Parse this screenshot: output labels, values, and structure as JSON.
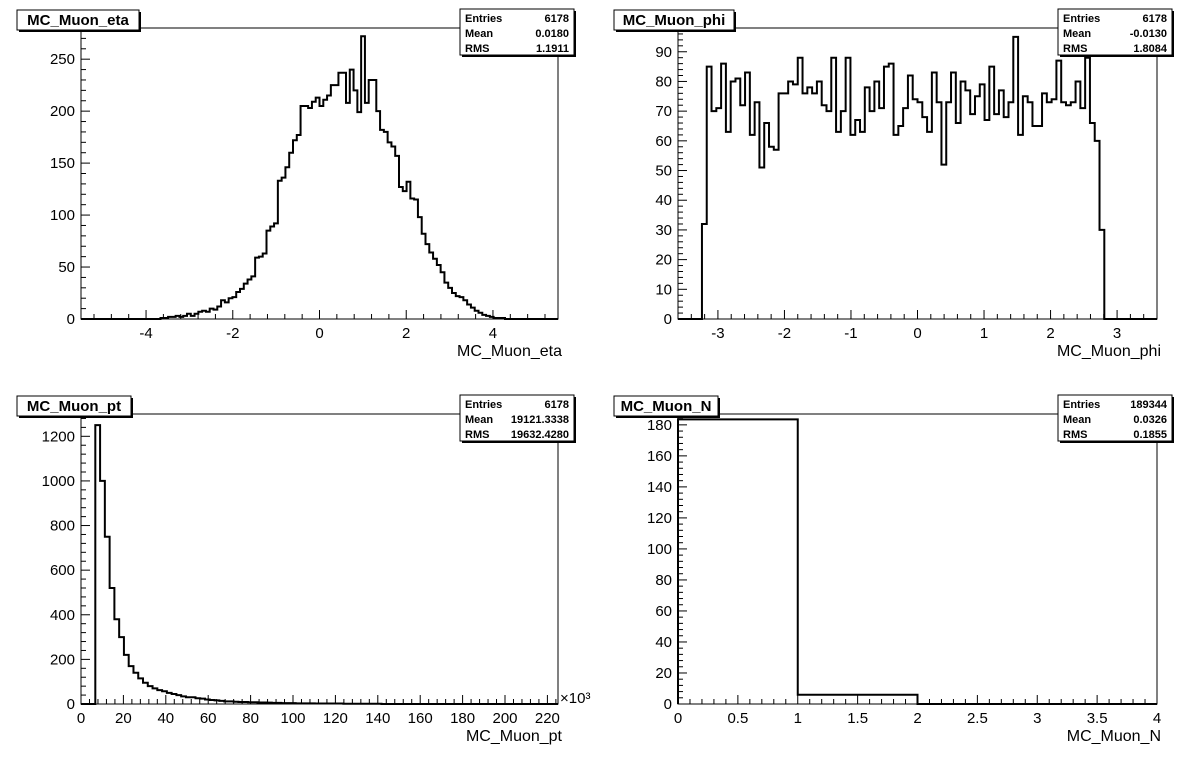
{
  "chart_data": [
    {
      "type": "histogram",
      "title": "MC_Muon_eta",
      "xlabel": "MC_Muon_eta",
      "xlim": [
        -5.5,
        5.5
      ],
      "ylim": [
        0,
        280
      ],
      "xticks": [
        -4,
        -2,
        0,
        2,
        4
      ],
      "yticks": [
        0,
        50,
        100,
        150,
        200,
        250
      ],
      "x_multiplier": "",
      "bins": {
        "edges_start": -5.5,
        "edges_end": 5.5,
        "values": [
          0,
          0,
          0,
          0,
          0,
          0,
          0,
          0,
          0,
          0,
          0,
          0,
          0,
          0,
          0,
          0,
          0,
          0,
          0,
          0,
          0,
          1,
          1,
          2,
          2,
          3,
          2,
          3,
          5,
          3,
          5,
          7,
          8,
          7,
          10,
          9,
          12,
          18,
          16,
          20,
          21,
          26,
          29,
          34,
          38,
          41,
          59,
          60,
          63,
          85,
          89,
          92,
          133,
          136,
          146,
          160,
          172,
          177,
          205,
          205,
          203,
          209,
          213,
          205,
          211,
          215,
          225,
          225,
          237,
          237,
          208,
          240,
          220,
          199,
          272,
          208,
          230,
          230,
          200,
          182,
          180,
          170,
          166,
          157,
          127,
          123,
          132,
          116,
          115,
          98,
          82,
          72,
          64,
          58,
          52,
          45,
          35,
          30,
          25,
          22,
          21,
          18,
          14,
          11,
          8,
          6,
          4,
          3,
          2,
          1,
          1,
          1,
          0,
          0,
          0,
          0,
          0,
          0,
          0,
          0,
          0,
          0,
          0,
          0,
          0,
          0
        ]
      },
      "stats": {
        "entries_label": "Entries",
        "entries": "6178",
        "mean_label": "Mean",
        "mean": "0.0180",
        "rms_label": "RMS",
        "rms": "1.1911"
      }
    },
    {
      "type": "histogram",
      "title": "MC_Muon_phi",
      "xlabel": "MC_Muon_phi",
      "xlim": [
        -3.6,
        3.6
      ],
      "ylim": [
        0,
        98
      ],
      "xticks": [
        -3,
        -2,
        -1,
        0,
        1,
        2,
        3
      ],
      "yticks": [
        0,
        10,
        20,
        30,
        40,
        50,
        60,
        70,
        80,
        90
      ],
      "x_multiplier": "",
      "bins": {
        "edges_start": -3.6,
        "edges_end": 3.6,
        "values": [
          0,
          0,
          0,
          0,
          0,
          32,
          85,
          70,
          71,
          86,
          63,
          80,
          81,
          72,
          83,
          62,
          73,
          51,
          66,
          58,
          57,
          76,
          76,
          80,
          79,
          88,
          76,
          78,
          76,
          80,
          72,
          70,
          88,
          63,
          70,
          88,
          62,
          67,
          63,
          78,
          70,
          80,
          71,
          85,
          86,
          62,
          65,
          71,
          82,
          74,
          73,
          68,
          63,
          83,
          73,
          52,
          73,
          83,
          66,
          80,
          77,
          69,
          75,
          79,
          67,
          85,
          69,
          77,
          68,
          73,
          95,
          62,
          75,
          73,
          65,
          65,
          76,
          73,
          74,
          87,
          73,
          72,
          73,
          80,
          71,
          88,
          66,
          60,
          30,
          0,
          0,
          0,
          0,
          0,
          0,
          0,
          0,
          0,
          0,
          0
        ]
      },
      "stats": {
        "entries_label": "Entries",
        "entries": "6178",
        "mean_label": "Mean",
        "mean": "-0.0130",
        "rms_label": "RMS",
        "rms": "1.8084"
      }
    },
    {
      "type": "histogram",
      "title": "MC_Muon_pt",
      "xlabel": "MC_Muon_pt",
      "xlim": [
        0,
        225
      ],
      "ylim": [
        0,
        1300
      ],
      "xticks": [
        0,
        20,
        40,
        60,
        80,
        100,
        120,
        140,
        160,
        180,
        200,
        220
      ],
      "yticks": [
        0,
        200,
        400,
        600,
        800,
        1000,
        1200
      ],
      "x_multiplier": "×10³",
      "bins": {
        "edges_start": 0,
        "edges_end": 225,
        "values": [
          0,
          0,
          0,
          1250,
          1000,
          750,
          520,
          380,
          300,
          220,
          170,
          140,
          115,
          95,
          80,
          70,
          62,
          57,
          50,
          45,
          40,
          34,
          30,
          30,
          26,
          24,
          20,
          18,
          16,
          14,
          12,
          12,
          10,
          9,
          9,
          8,
          8,
          7,
          7,
          6,
          5,
          5,
          4,
          4,
          4,
          3,
          3,
          3,
          3,
          2,
          2,
          2,
          2,
          2,
          2,
          1,
          1,
          1,
          1,
          1,
          1,
          1,
          1,
          0,
          0,
          0,
          0,
          0,
          0,
          0,
          0,
          0,
          0,
          0,
          0,
          0,
          0,
          0,
          0,
          0,
          0,
          0,
          0,
          0,
          0,
          0,
          0,
          0,
          0,
          0,
          0,
          0,
          0,
          0,
          0,
          0,
          0,
          0,
          0,
          0
        ]
      },
      "stats": {
        "entries_label": "Entries",
        "entries": "6178",
        "mean_label": "Mean",
        "mean": "19121.3338",
        "rms_label": "RMS",
        "rms": "19632.4280"
      }
    },
    {
      "type": "histogram",
      "title": "MC_Muon_N",
      "xlabel": "MC_Muon_N",
      "xlim": [
        0,
        4
      ],
      "ylim": [
        0,
        187
      ],
      "xticks": [
        0,
        0.5,
        1,
        1.5,
        2,
        2.5,
        3,
        3.5,
        4
      ],
      "yticks": [
        0,
        20,
        40,
        60,
        80,
        100,
        120,
        140,
        160,
        180
      ],
      "x_multiplier": "",
      "bins": {
        "edges_start": 0,
        "edges_end": 4,
        "values": [
          183.5,
          6,
          0,
          0
        ]
      },
      "stats": {
        "entries_label": "Entries",
        "entries": "189344",
        "mean_label": "Mean",
        "mean": "0.0326",
        "rms_label": "RMS",
        "rms": "0.1855"
      }
    }
  ]
}
